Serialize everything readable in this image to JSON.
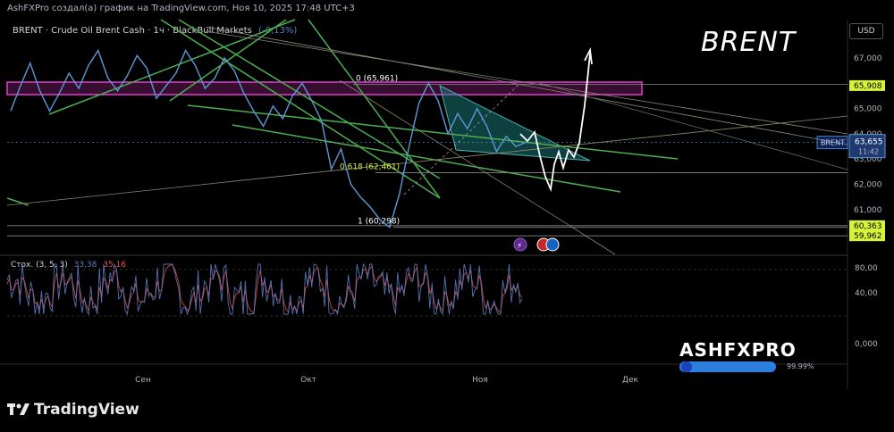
{
  "header": {
    "attribution": "AshFXPro создал(а) график на TradingView.com, Ноя 10, 2025 17:48 UTC+3",
    "symbol_line": "BRENT · Crude Oil Brent Cash · 1ч · BlackBull Markets",
    "change_text": "(-0,13%)"
  },
  "overlay_title": "BRENT",
  "currency": "USD",
  "price_axis": {
    "ticks": [
      "67,000",
      "66,000",
      "65,000",
      "64,000",
      "63,000",
      "62,000",
      "61,000"
    ],
    "tick_values": [
      67,
      66,
      65,
      64,
      63,
      62,
      61
    ],
    "labels": [
      {
        "text": "65,908",
        "value": 65.908,
        "color": "#d7f23a"
      },
      {
        "text": "60,363",
        "value": 60.363,
        "color": "#d7f23a"
      },
      {
        "text": "59,962",
        "value": 59.962,
        "color": "#d7f23a"
      }
    ],
    "current": {
      "symbol": "BRENT",
      "price": "63,655",
      "countdown": "11:42",
      "value": 63.655,
      "color": "#5b9bd5"
    }
  },
  "fib_levels": [
    {
      "label": "0 (65,961)",
      "value": 65.961,
      "color": "#ffffff"
    },
    {
      "label": "0,618 (62,461)",
      "value": 62.461,
      "color": "#d7f23a"
    },
    {
      "label": "1 (60,298)",
      "value": 60.298,
      "color": "#ffffff"
    }
  ],
  "stochastic": {
    "label": "Стох. (3, 5, 3)",
    "k_value": "33,38",
    "d_value": "35,16",
    "k_color": "#5b7cc4",
    "d_color": "#ef5350",
    "axis_ticks": [
      "80,00",
      "40,00",
      "0,000"
    ],
    "axis_values": [
      80,
      40,
      0
    ]
  },
  "time_axis": [
    "Сен",
    "Окт",
    "Ноя",
    "Дек"
  ],
  "watermark": {
    "brand": "ASHFXPRO",
    "percent": "99.99%"
  },
  "platform": "TradingView",
  "chart_data": {
    "type": "line",
    "title": "BRENT",
    "series": [
      {
        "values": [
          64.9,
          65.9,
          66.8,
          65.7,
          64.9,
          65.6,
          66.4,
          65.8,
          66.7,
          67.3,
          66.2,
          65.7,
          66.3,
          67.1,
          66.6,
          65.4,
          65.9,
          66.4,
          67.3,
          66.7,
          65.8,
          66.2,
          67.0,
          66.5,
          65.6,
          64.9,
          64.3,
          65.1,
          64.6,
          65.5,
          66.0,
          65.3,
          64.5,
          62.6,
          63.4,
          62.0,
          61.5,
          61.1,
          60.6,
          60.3,
          61.6,
          63.5,
          65.2,
          66.0,
          65.3,
          64.0,
          64.8,
          64.2,
          65.0,
          64.3,
          63.3,
          63.9,
          63.5,
          63.66
        ]
      }
    ],
    "ylim": [
      59.8,
      67.6
    ],
    "annotations": [
      "0 (65,961)",
      "0,618 (62,461)",
      "1 (60,298)"
    ]
  }
}
